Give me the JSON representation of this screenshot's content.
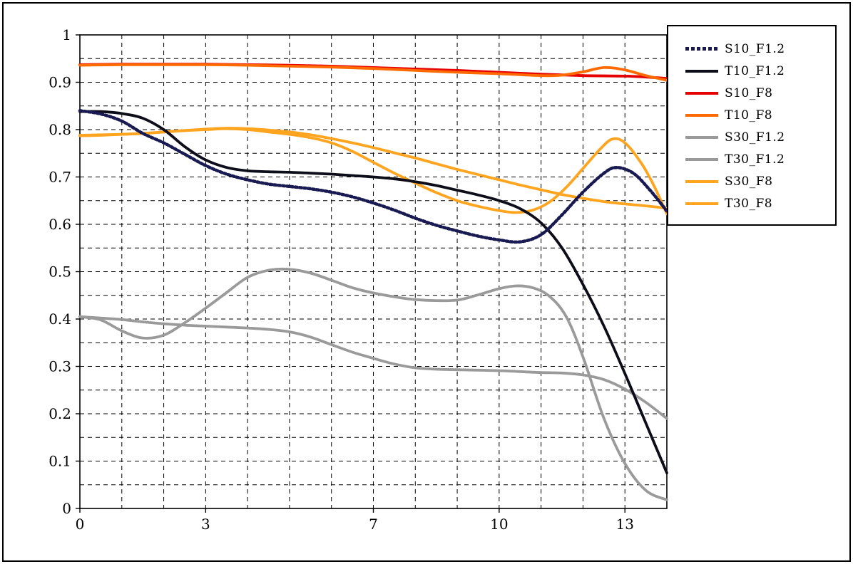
{
  "chart_data": {
    "type": "line",
    "title": "",
    "xlabel": "",
    "ylabel": "",
    "xlim": [
      0,
      14
    ],
    "ylim": [
      0,
      1
    ],
    "grid": {
      "x_step": 1,
      "y_step": 0.05,
      "style": "dashed"
    },
    "legend_position": "top-right",
    "x_ticks": [
      {
        "value": 0,
        "label": "0"
      },
      {
        "value": 3,
        "label": "3"
      },
      {
        "value": 7,
        "label": "7"
      },
      {
        "value": 10,
        "label": "10"
      },
      {
        "value": 13,
        "label": "13"
      }
    ],
    "y_ticks": [
      {
        "value": 0,
        "label": "0"
      },
      {
        "value": 0.1,
        "label": "0.1"
      },
      {
        "value": 0.2,
        "label": "0.2"
      },
      {
        "value": 0.3,
        "label": "0.3"
      },
      {
        "value": 0.4,
        "label": "0.4"
      },
      {
        "value": 0.5,
        "label": "0.5"
      },
      {
        "value": 0.6,
        "label": "0.6"
      },
      {
        "value": 0.7,
        "label": "0.7"
      },
      {
        "value": 0.8,
        "label": "0.8"
      },
      {
        "value": 0.9,
        "label": "0.9"
      },
      {
        "value": 1,
        "label": "1"
      }
    ],
    "draw_order": [
      4,
      5,
      6,
      7,
      2,
      3,
      1,
      0
    ],
    "series": [
      {
        "name": "S10_F1.2",
        "color": "#1a1a52",
        "dash": "3,3",
        "width": 4.5,
        "points": [
          [
            0,
            0.84
          ],
          [
            0.5,
            0.833
          ],
          [
            1,
            0.818
          ],
          [
            1.5,
            0.792
          ],
          [
            2,
            0.772
          ],
          [
            2.5,
            0.748
          ],
          [
            3,
            0.724
          ],
          [
            3.5,
            0.706
          ],
          [
            4,
            0.694
          ],
          [
            4.5,
            0.685
          ],
          [
            5,
            0.68
          ],
          [
            5.5,
            0.675
          ],
          [
            6,
            0.668
          ],
          [
            6.5,
            0.658
          ],
          [
            7,
            0.645
          ],
          [
            7.5,
            0.63
          ],
          [
            8,
            0.613
          ],
          [
            8.5,
            0.598
          ],
          [
            9,
            0.586
          ],
          [
            9.5,
            0.575
          ],
          [
            10,
            0.567
          ],
          [
            10.5,
            0.563
          ],
          [
            11,
            0.578
          ],
          [
            11.5,
            0.62
          ],
          [
            12,
            0.668
          ],
          [
            12.5,
            0.708
          ],
          [
            12.8,
            0.72
          ],
          [
            13.2,
            0.708
          ],
          [
            13.6,
            0.672
          ],
          [
            14,
            0.628
          ]
        ]
      },
      {
        "name": "T10_F1.2",
        "color": "#0d0d1a",
        "dash": "",
        "width": 3.8,
        "points": [
          [
            0,
            0.838
          ],
          [
            0.5,
            0.838
          ],
          [
            1,
            0.834
          ],
          [
            1.5,
            0.824
          ],
          [
            2,
            0.8
          ],
          [
            2.5,
            0.764
          ],
          [
            3,
            0.736
          ],
          [
            3.5,
            0.72
          ],
          [
            4,
            0.713
          ],
          [
            4.5,
            0.711
          ],
          [
            5,
            0.71
          ],
          [
            5.5,
            0.708
          ],
          [
            6,
            0.706
          ],
          [
            6.5,
            0.703
          ],
          [
            7,
            0.7
          ],
          [
            7.5,
            0.696
          ],
          [
            8,
            0.69
          ],
          [
            8.5,
            0.682
          ],
          [
            9,
            0.672
          ],
          [
            9.5,
            0.662
          ],
          [
            10,
            0.65
          ],
          [
            10.5,
            0.633
          ],
          [
            11,
            0.603
          ],
          [
            11.5,
            0.55
          ],
          [
            12,
            0.473
          ],
          [
            12.5,
            0.385
          ],
          [
            13,
            0.285
          ],
          [
            13.5,
            0.18
          ],
          [
            14,
            0.075
          ]
        ]
      },
      {
        "name": "S10_F8",
        "color": "#e60000",
        "dash": "",
        "width": 3.8,
        "points": [
          [
            0,
            0.937
          ],
          [
            1,
            0.938
          ],
          [
            2,
            0.938
          ],
          [
            3,
            0.938
          ],
          [
            4,
            0.937
          ],
          [
            5,
            0.936
          ],
          [
            6,
            0.934
          ],
          [
            7,
            0.931
          ],
          [
            8,
            0.928
          ],
          [
            9,
            0.925
          ],
          [
            10,
            0.921
          ],
          [
            11,
            0.917
          ],
          [
            12,
            0.914
          ],
          [
            13,
            0.913
          ],
          [
            13.5,
            0.911
          ],
          [
            14,
            0.908
          ]
        ]
      },
      {
        "name": "T10_F8",
        "color": "#ff6a00",
        "dash": "",
        "width": 3.8,
        "points": [
          [
            0,
            0.936
          ],
          [
            1,
            0.937
          ],
          [
            2,
            0.937
          ],
          [
            3,
            0.937
          ],
          [
            4,
            0.936
          ],
          [
            5,
            0.934
          ],
          [
            6,
            0.932
          ],
          [
            7,
            0.929
          ],
          [
            8,
            0.925
          ],
          [
            9,
            0.921
          ],
          [
            10,
            0.918
          ],
          [
            11,
            0.914
          ],
          [
            11.5,
            0.915
          ],
          [
            12,
            0.922
          ],
          [
            12.5,
            0.931
          ],
          [
            13,
            0.926
          ],
          [
            13.5,
            0.914
          ],
          [
            14,
            0.904
          ]
        ]
      },
      {
        "name": "S30_F1.2",
        "color": "#9a9a9a",
        "dash": "",
        "width": 3.8,
        "points": [
          [
            0,
            0.405
          ],
          [
            0.5,
            0.398
          ],
          [
            1,
            0.375
          ],
          [
            1.5,
            0.36
          ],
          [
            2,
            0.366
          ],
          [
            2.5,
            0.392
          ],
          [
            3,
            0.423
          ],
          [
            3.5,
            0.456
          ],
          [
            4,
            0.488
          ],
          [
            4.5,
            0.503
          ],
          [
            5,
            0.505
          ],
          [
            5.5,
            0.497
          ],
          [
            6,
            0.482
          ],
          [
            6.5,
            0.466
          ],
          [
            7,
            0.455
          ],
          [
            7.5,
            0.447
          ],
          [
            8,
            0.441
          ],
          [
            8.5,
            0.439
          ],
          [
            9,
            0.44
          ],
          [
            9.5,
            0.451
          ],
          [
            10,
            0.464
          ],
          [
            10.4,
            0.47
          ],
          [
            10.8,
            0.466
          ],
          [
            11.2,
            0.448
          ],
          [
            11.6,
            0.405
          ],
          [
            12,
            0.32
          ],
          [
            12.5,
            0.19
          ],
          [
            13,
            0.095
          ],
          [
            13.5,
            0.038
          ],
          [
            14,
            0.018
          ]
        ]
      },
      {
        "name": "T30_F1.2",
        "color": "#9a9a9a",
        "dash": "",
        "width": 3.8,
        "points": [
          [
            0,
            0.405
          ],
          [
            0.5,
            0.402
          ],
          [
            1,
            0.399
          ],
          [
            1.5,
            0.394
          ],
          [
            2,
            0.39
          ],
          [
            2.5,
            0.387
          ],
          [
            3,
            0.385
          ],
          [
            3.5,
            0.383
          ],
          [
            4,
            0.381
          ],
          [
            4.5,
            0.378
          ],
          [
            5,
            0.373
          ],
          [
            5.5,
            0.362
          ],
          [
            6,
            0.346
          ],
          [
            6.5,
            0.33
          ],
          [
            7,
            0.317
          ],
          [
            7.5,
            0.305
          ],
          [
            8,
            0.297
          ],
          [
            8.5,
            0.294
          ],
          [
            9,
            0.293
          ],
          [
            9.5,
            0.292
          ],
          [
            10,
            0.291
          ],
          [
            10.5,
            0.289
          ],
          [
            11,
            0.287
          ],
          [
            11.5,
            0.286
          ],
          [
            12,
            0.282
          ],
          [
            12.5,
            0.272
          ],
          [
            13,
            0.252
          ],
          [
            13.5,
            0.224
          ],
          [
            14,
            0.19
          ]
        ]
      },
      {
        "name": "S30_F8",
        "color": "#ffa41e",
        "dash": "",
        "width": 3.8,
        "points": [
          [
            0,
            0.788
          ],
          [
            0.5,
            0.789
          ],
          [
            1,
            0.79
          ],
          [
            1.5,
            0.792
          ],
          [
            2,
            0.795
          ],
          [
            2.5,
            0.798
          ],
          [
            3,
            0.801
          ],
          [
            3.5,
            0.803
          ],
          [
            4,
            0.802
          ],
          [
            4.5,
            0.799
          ],
          [
            5,
            0.795
          ],
          [
            5.5,
            0.789
          ],
          [
            6,
            0.781
          ],
          [
            6.5,
            0.772
          ],
          [
            7,
            0.762
          ],
          [
            7.5,
            0.751
          ],
          [
            8,
            0.74
          ],
          [
            8.5,
            0.728
          ],
          [
            9,
            0.716
          ],
          [
            9.5,
            0.705
          ],
          [
            10,
            0.694
          ],
          [
            10.5,
            0.683
          ],
          [
            11,
            0.673
          ],
          [
            11.5,
            0.663
          ],
          [
            12,
            0.655
          ],
          [
            12.5,
            0.648
          ],
          [
            13,
            0.643
          ],
          [
            13.5,
            0.639
          ],
          [
            14,
            0.634
          ]
        ]
      },
      {
        "name": "T30_F8",
        "color": "#ffa41e",
        "dash": "",
        "width": 3.8,
        "points": [
          [
            0,
            0.787
          ],
          [
            0.5,
            0.788
          ],
          [
            1,
            0.79
          ],
          [
            1.5,
            0.792
          ],
          [
            2,
            0.795
          ],
          [
            2.5,
            0.798
          ],
          [
            3,
            0.8
          ],
          [
            3.5,
            0.802
          ],
          [
            4,
            0.8
          ],
          [
            4.5,
            0.795
          ],
          [
            5,
            0.79
          ],
          [
            5.5,
            0.783
          ],
          [
            6,
            0.772
          ],
          [
            6.5,
            0.754
          ],
          [
            7,
            0.731
          ],
          [
            7.5,
            0.708
          ],
          [
            8,
            0.687
          ],
          [
            8.5,
            0.667
          ],
          [
            9,
            0.65
          ],
          [
            9.5,
            0.638
          ],
          [
            10,
            0.629
          ],
          [
            10.4,
            0.625
          ],
          [
            10.8,
            0.63
          ],
          [
            11.2,
            0.647
          ],
          [
            11.6,
            0.678
          ],
          [
            12,
            0.718
          ],
          [
            12.4,
            0.758
          ],
          [
            12.7,
            0.78
          ],
          [
            13,
            0.772
          ],
          [
            13.4,
            0.728
          ],
          [
            13.7,
            0.68
          ],
          [
            14,
            0.622
          ]
        ]
      }
    ]
  }
}
